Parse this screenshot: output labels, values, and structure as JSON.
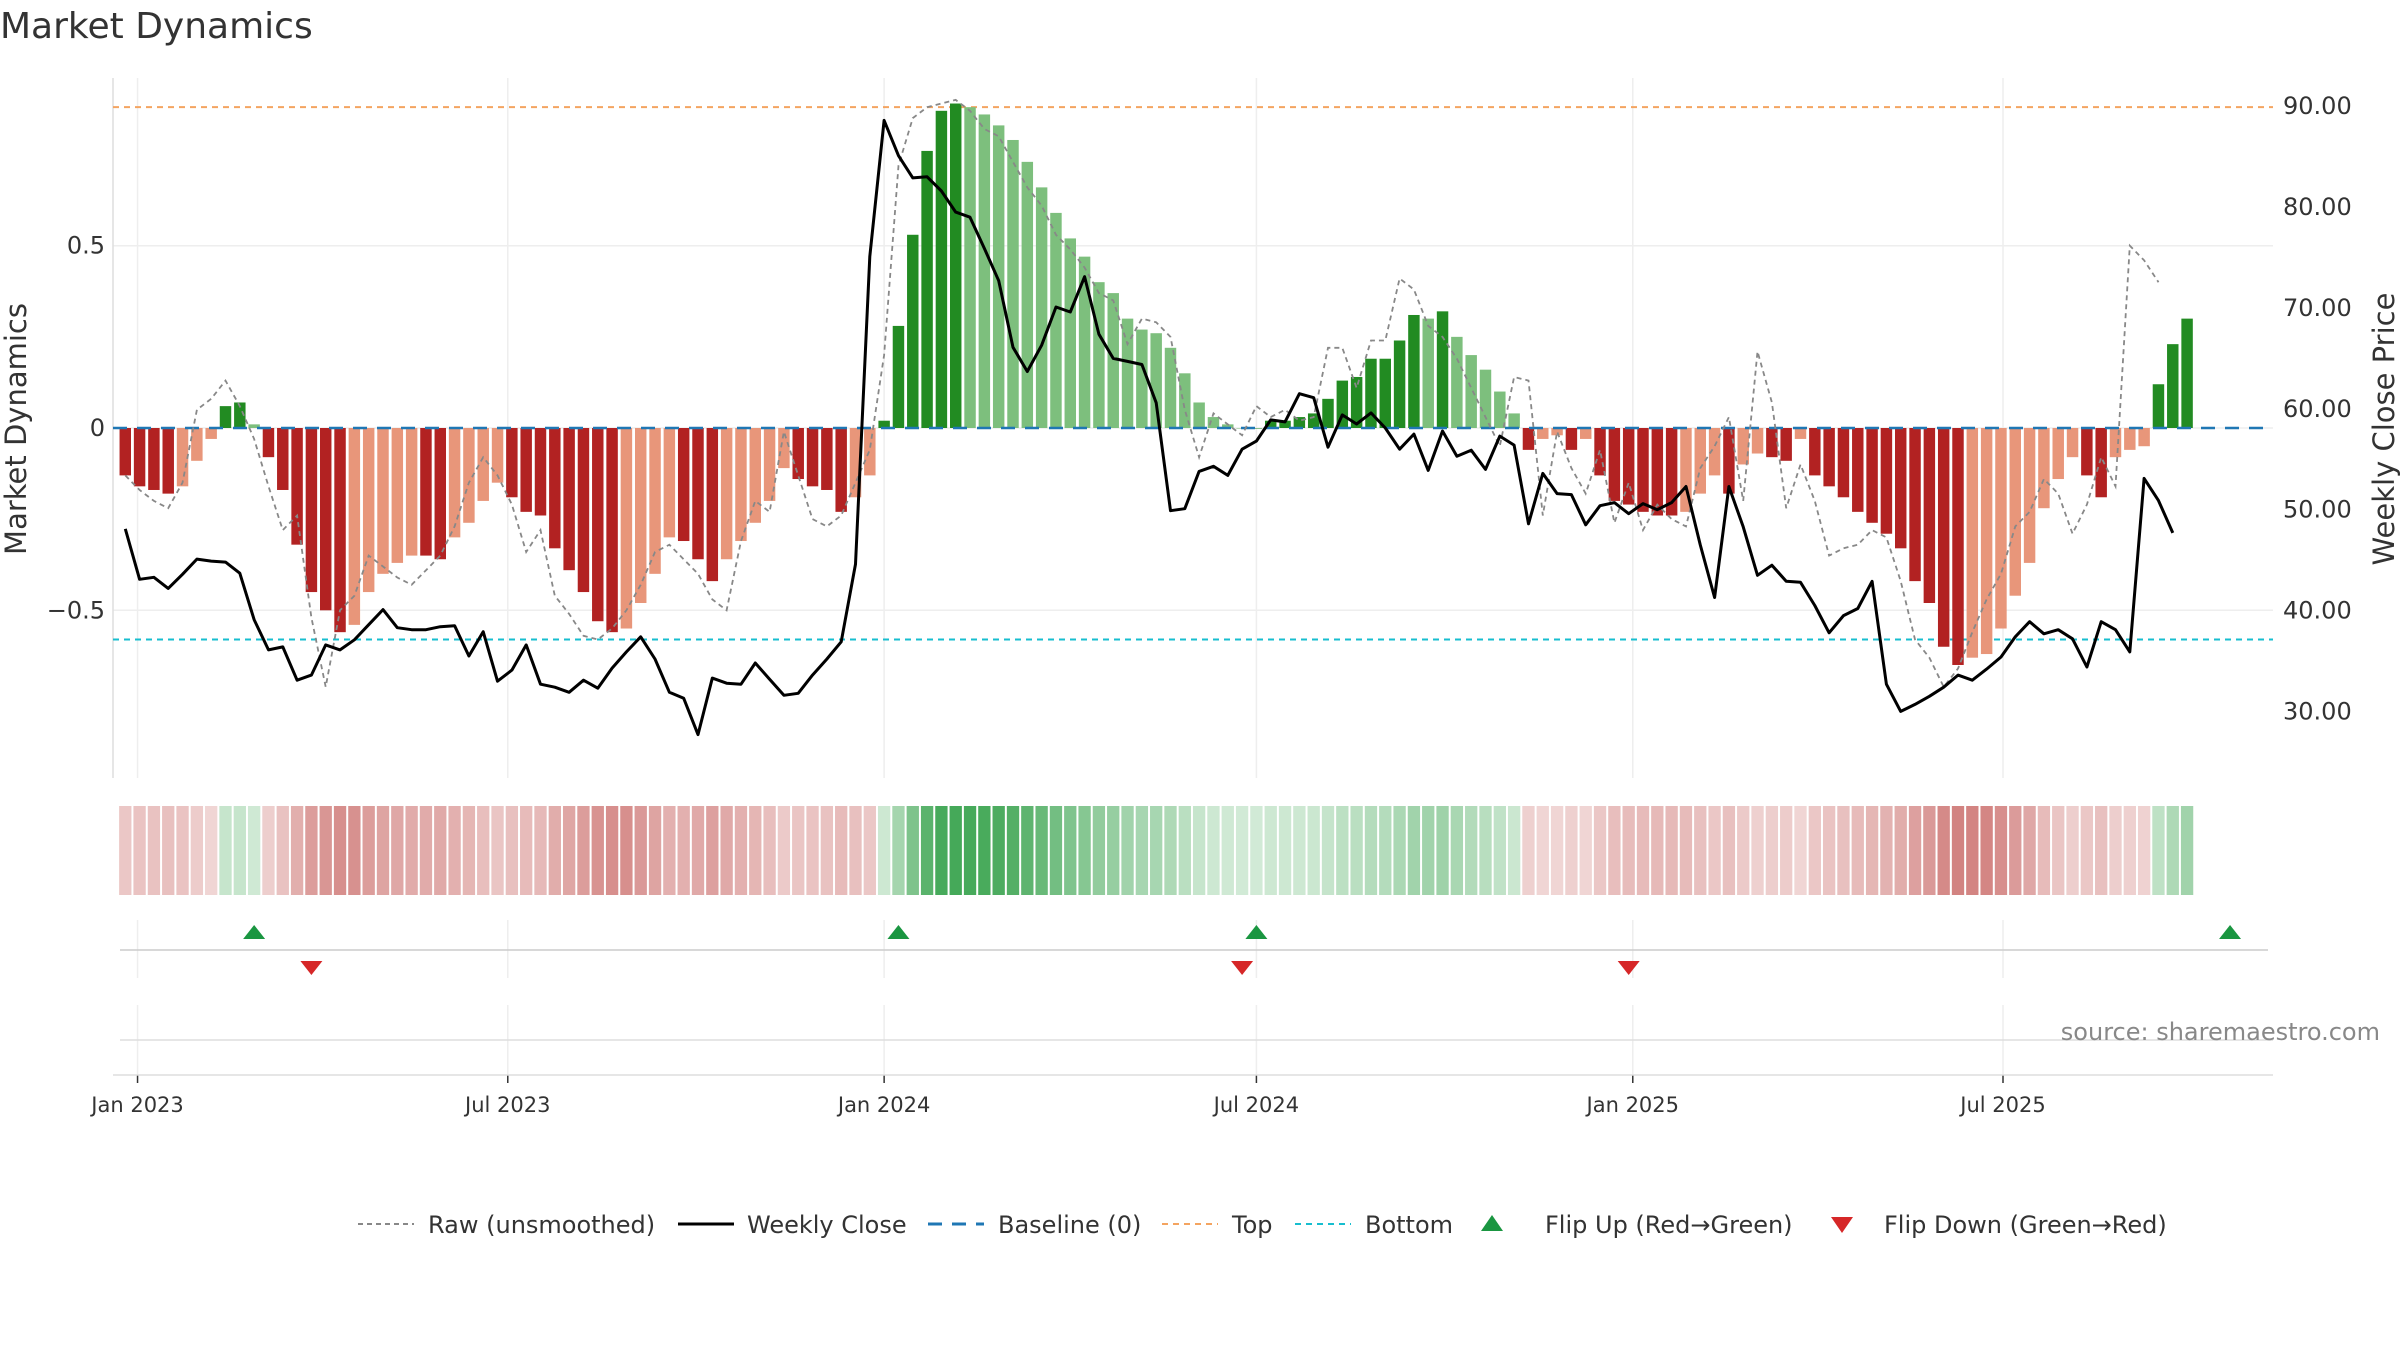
{
  "title": "Market Dynamics",
  "source": "source: sharemaestro.com",
  "colors": {
    "strong_red": "#b22222",
    "light_red": "#e8967a",
    "strong_green": "#228b22",
    "light_green": "#7dbf7d",
    "close_line": "#000000",
    "raw_line": "#888888",
    "baseline": "#1f77b4",
    "top_line": "#f4a460",
    "bottom_line": "#17becf",
    "flip_up": "#1a9641",
    "flip_down": "#d62728"
  },
  "legend": [
    {
      "key": "raw",
      "label": "Raw (unsmoothed)"
    },
    {
      "key": "close",
      "label": "Weekly Close"
    },
    {
      "key": "baseline",
      "label": "Baseline (0)"
    },
    {
      "key": "top",
      "label": "Top"
    },
    {
      "key": "bottom",
      "label": "Bottom"
    },
    {
      "key": "flip_up",
      "label": "Flip Up (Red→Green)"
    },
    {
      "key": "flip_down",
      "label": "Flip Down (Green→Red)"
    }
  ],
  "chart_data": {
    "type": "bar",
    "title": "Market Dynamics",
    "xlabel": "",
    "ylabel": "Market Dynamics",
    "y2label": "Weekly Close Price",
    "ylim": [
      -0.96,
      0.96
    ],
    "y2lim": [
      23.3,
      92.7
    ],
    "yticks": [
      {
        "v": 0.5,
        "label": "0.5"
      },
      {
        "v": 0,
        "label": "0"
      },
      {
        "v": -0.5,
        "label": "−0.5"
      }
    ],
    "y2ticks": [
      {
        "v": 90,
        "label": "90.00"
      },
      {
        "v": 80,
        "label": "80.00"
      },
      {
        "v": 70,
        "label": "70.00"
      },
      {
        "v": 60,
        "label": "60.00"
      },
      {
        "v": 50,
        "label": "50.00"
      },
      {
        "v": 40,
        "label": "40.00"
      },
      {
        "v": 30,
        "label": "30.00"
      }
    ],
    "xticks": [
      {
        "date": "2023-01-01",
        "label": "Jan 2023"
      },
      {
        "date": "2023-07-01",
        "label": "Jul 2023"
      },
      {
        "date": "2024-01-01",
        "label": "Jan 2024"
      },
      {
        "date": "2024-07-01",
        "label": "Jul 2024"
      },
      {
        "date": "2025-01-01",
        "label": "Jan 2025"
      },
      {
        "date": "2025-07-01",
        "label": "Jul 2025"
      }
    ],
    "xlim": [
      "2022-12-20",
      "2025-11-10"
    ],
    "start_date": "2022-12-26",
    "week_days": 7,
    "top_level": 0.88,
    "bottom_level": -0.58,
    "baseline": 0,
    "grid": true,
    "legend_position": "bottom",
    "smoothed_values": [
      -0.13,
      -0.16,
      -0.17,
      -0.18,
      -0.16,
      -0.09,
      -0.03,
      0.06,
      0.07,
      0.01,
      -0.08,
      -0.17,
      -0.32,
      -0.45,
      -0.5,
      -0.56,
      -0.54,
      -0.45,
      -0.4,
      -0.37,
      -0.35,
      -0.35,
      -0.36,
      -0.3,
      -0.26,
      -0.2,
      -0.15,
      -0.19,
      -0.23,
      -0.24,
      -0.33,
      -0.39,
      -0.45,
      -0.53,
      -0.56,
      -0.55,
      -0.48,
      -0.4,
      -0.3,
      -0.31,
      -0.36,
      -0.42,
      -0.36,
      -0.31,
      -0.26,
      -0.2,
      -0.11,
      -0.14,
      -0.16,
      -0.17,
      -0.23,
      -0.19,
      -0.13,
      0.02,
      0.28,
      0.53,
      0.76,
      0.87,
      0.89,
      0.88,
      0.86,
      0.83,
      0.79,
      0.73,
      0.66,
      0.59,
      0.52,
      0.47,
      0.4,
      0.37,
      0.3,
      0.27,
      0.26,
      0.22,
      0.15,
      0.07,
      0.03,
      0.01,
      0.0,
      0.0,
      0.02,
      0.02,
      0.03,
      0.04,
      0.08,
      0.13,
      0.14,
      0.19,
      0.19,
      0.24,
      0.31,
      0.3,
      0.32,
      0.25,
      0.2,
      0.16,
      0.1,
      0.04,
      -0.06,
      -0.03,
      -0.02,
      -0.06,
      -0.03,
      -0.13,
      -0.2,
      -0.21,
      -0.23,
      -0.24,
      -0.24,
      -0.23,
      -0.18,
      -0.13,
      -0.18,
      -0.1,
      -0.07,
      -0.08,
      -0.09,
      -0.03,
      -0.13,
      -0.16,
      -0.19,
      -0.23,
      -0.26,
      -0.29,
      -0.33,
      -0.42,
      -0.48,
      -0.6,
      -0.65,
      -0.63,
      -0.62,
      -0.55,
      -0.46,
      -0.37,
      -0.22,
      -0.14,
      -0.08,
      -0.13,
      -0.19,
      -0.08,
      -0.06,
      -0.05,
      0.12,
      0.23,
      0.3
    ],
    "raw_values": [
      -0.13,
      -0.17,
      -0.2,
      -0.22,
      -0.15,
      0.05,
      0.08,
      0.13,
      0.06,
      -0.03,
      -0.16,
      -0.28,
      -0.24,
      -0.52,
      -0.71,
      -0.5,
      -0.46,
      -0.35,
      -0.38,
      -0.41,
      -0.43,
      -0.39,
      -0.35,
      -0.27,
      -0.15,
      -0.08,
      -0.13,
      -0.21,
      -0.34,
      -0.28,
      -0.46,
      -0.51,
      -0.57,
      -0.58,
      -0.55,
      -0.5,
      -0.43,
      -0.34,
      -0.32,
      -0.36,
      -0.4,
      -0.47,
      -0.5,
      -0.31,
      -0.2,
      -0.23,
      -0.01,
      -0.13,
      -0.25,
      -0.27,
      -0.24,
      -0.15,
      -0.06,
      0.2,
      0.72,
      0.85,
      0.88,
      0.89,
      0.9,
      0.87,
      0.82,
      0.8,
      0.73,
      0.66,
      0.61,
      0.53,
      0.49,
      0.44,
      0.37,
      0.35,
      0.23,
      0.3,
      0.29,
      0.25,
      0.05,
      -0.08,
      0.04,
      0.01,
      -0.02,
      0.06,
      0.03,
      0.05,
      0.02,
      0.03,
      0.22,
      0.22,
      0.11,
      0.24,
      0.24,
      0.41,
      0.38,
      0.28,
      0.25,
      0.19,
      0.11,
      0.03,
      -0.05,
      0.14,
      0.13,
      -0.24,
      -0.01,
      -0.11,
      -0.18,
      -0.06,
      -0.26,
      -0.15,
      -0.28,
      -0.21,
      -0.25,
      -0.27,
      -0.11,
      -0.05,
      0.03,
      -0.2,
      0.21,
      0.07,
      -0.22,
      -0.1,
      -0.2,
      -0.35,
      -0.33,
      -0.32,
      -0.28,
      -0.3,
      -0.42,
      -0.58,
      -0.63,
      -0.71,
      -0.66,
      -0.56,
      -0.47,
      -0.4,
      -0.27,
      -0.23,
      -0.14,
      -0.18,
      -0.29,
      -0.21,
      -0.08,
      -0.16,
      0.5,
      0.46,
      0.4
    ],
    "close_values": [
      48,
      43,
      43.2,
      42.1,
      43.5,
      45,
      44.8,
      44.7,
      43.6,
      39,
      36,
      36.3,
      33,
      33.5,
      36.5,
      36,
      37,
      38.5,
      40,
      38.2,
      38,
      38,
      38.3,
      38.4,
      35.4,
      37.8,
      32.9,
      34,
      36.5,
      32.6,
      32.3,
      31.8,
      33,
      32.2,
      34.2,
      35.8,
      37.3,
      35.1,
      31.8,
      31.2,
      27.6,
      33.2,
      32.7,
      32.6,
      34.7,
      33.1,
      31.5,
      31.7,
      33.5,
      35.1,
      36.8,
      44.5,
      75,
      88.5,
      85,
      82.8,
      82.9,
      81.5,
      79.4,
      78.9,
      75.8,
      72.6,
      66,
      63.6,
      66.2,
      70,
      69.5,
      73,
      67.3,
      64.9,
      64.6,
      64.3,
      60.5,
      49.8,
      50,
      53.7,
      54.2,
      53.3,
      55.9,
      56.7,
      58.8,
      58.6,
      61.4,
      61,
      56.1,
      59.3,
      58.4,
      59.5,
      58,
      55.9,
      57.4,
      53.8,
      57.7,
      55.2,
      55.8,
      53.9,
      57.2,
      56.3,
      48.5,
      53.5,
      51.5,
      51.4,
      48.4,
      50.3,
      50.6,
      49.5,
      50.5,
      49.9,
      50.6,
      52.2,
      46.4,
      41.2,
      52.2,
      48.2,
      43.4,
      44.4,
      42.8,
      42.7,
      40.4,
      37.7,
      39.4,
      40.1,
      42.8,
      32.6,
      29.9,
      30.6,
      31.4,
      32.3,
      33.5,
      33,
      34.1,
      35.3,
      37.3,
      38.8,
      37.6,
      38,
      37.1,
      34.3,
      38.8,
      38,
      35.8,
      53,
      50.8,
      47.6
    ],
    "flip_up_weeks": [
      9,
      54,
      79,
      147
    ],
    "flip_down_weeks": [
      13,
      78,
      105
    ]
  }
}
